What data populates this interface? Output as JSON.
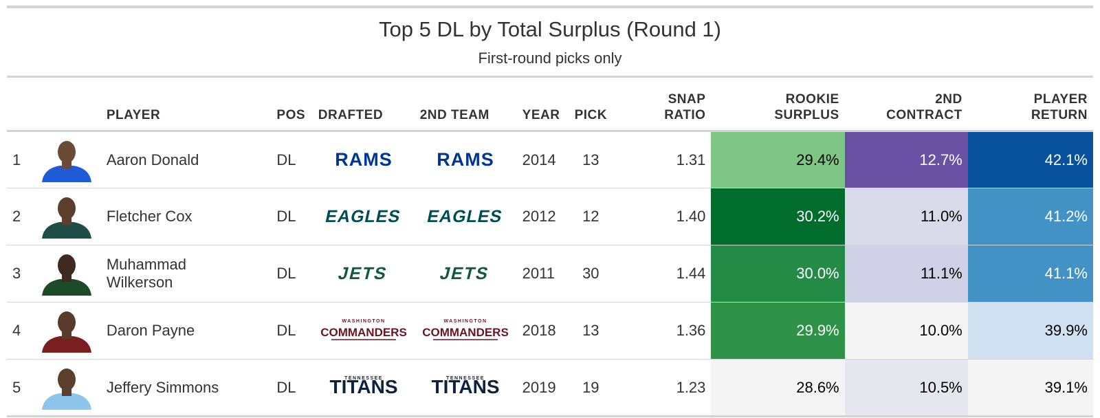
{
  "title": "Top 5 DL by Total Surplus (Round 1)",
  "subtitle": "First-round picks only",
  "columns": {
    "rank": "",
    "headshot": "",
    "player": "PLAYER",
    "pos": "POS",
    "drafted": "DRAFTED",
    "second_team": "2ND TEAM",
    "year": "YEAR",
    "pick": "PICK",
    "snap_ratio_1": "SNAP",
    "snap_ratio_2": "RATIO",
    "rookie_surplus_1": "ROOKIE",
    "rookie_surplus_2": "SURPLUS",
    "second_contract_1": "2ND",
    "second_contract_2": "CONTRACT",
    "player_return_1": "PLAYER",
    "player_return_2": "RETURN"
  },
  "rows": [
    {
      "rank": "1",
      "player_line1": "Aaron Donald",
      "player_line2": "",
      "pos": "DL",
      "drafted": "RAMS",
      "second_team": "RAMS",
      "team_style": "rams",
      "year": "2014",
      "pick": "13",
      "snap_ratio": "1.31",
      "rookie_surplus": "29.4%",
      "second_contract": "12.7%",
      "player_return": "42.1%",
      "rookie_color": "#7fc586",
      "rookie_dark": false,
      "contract_color": "#6a51a3",
      "contract_dark": true,
      "return_color": "#08519c",
      "return_dark": true,
      "jersey_color": "#1e5bd6",
      "skin_color": "#6b4a36"
    },
    {
      "rank": "2",
      "player_line1": "Fletcher Cox",
      "player_line2": "",
      "pos": "DL",
      "drafted": "EAGLES",
      "second_team": "EAGLES",
      "team_style": "eagles",
      "year": "2012",
      "pick": "12",
      "snap_ratio": "1.40",
      "rookie_surplus": "30.2%",
      "second_contract": "11.0%",
      "player_return": "41.2%",
      "rookie_color": "#006d2c",
      "rookie_dark": true,
      "contract_color": "#dadaeb",
      "contract_dark": false,
      "return_color": "#4292c6",
      "return_dark": true,
      "jersey_color": "#1f4e47",
      "skin_color": "#5c3e2d"
    },
    {
      "rank": "3",
      "player_line1": "Muhammad",
      "player_line2": "Wilkerson",
      "pos": "DL",
      "drafted": "JETS",
      "second_team": "JETS",
      "team_style": "jets",
      "year": "2011",
      "pick": "30",
      "snap_ratio": "1.44",
      "rookie_surplus": "30.0%",
      "second_contract": "11.1%",
      "player_return": "41.1%",
      "rookie_color": "#238b45",
      "rookie_dark": true,
      "contract_color": "#d0d0e6",
      "contract_dark": false,
      "return_color": "#4292c6",
      "return_dark": true,
      "jersey_color": "#1d4b2a",
      "skin_color": "#3f2a1f"
    },
    {
      "rank": "4",
      "player_line1": "Daron Payne",
      "player_line2": "",
      "pos": "DL",
      "drafted": "COMMANDERS",
      "second_team": "COMMANDERS",
      "team_style": "commanders",
      "year": "2018",
      "pick": "13",
      "snap_ratio": "1.36",
      "rookie_surplus": "29.9%",
      "second_contract": "10.0%",
      "player_return": "39.9%",
      "rookie_color": "#2e9249",
      "rookie_dark": true,
      "contract_color": "#f4f4f4",
      "contract_dark": false,
      "return_color": "#d0e1f2",
      "return_dark": false,
      "jersey_color": "#7a1f1f",
      "skin_color": "#5a3a2a"
    },
    {
      "rank": "5",
      "player_line1": "Jeffery Simmons",
      "player_line2": "",
      "pos": "DL",
      "drafted": "TITANS",
      "second_team": "TITANS",
      "team_style": "titans",
      "year": "2019",
      "pick": "19",
      "snap_ratio": "1.23",
      "rookie_surplus": "28.6%",
      "second_contract": "10.5%",
      "player_return": "39.1%",
      "rookie_color": "#f4f4f4",
      "rookie_dark": false,
      "contract_color": "#e6e6ef",
      "contract_dark": false,
      "return_color": "#f4f4f4",
      "return_dark": false,
      "jersey_color": "#8ec5ea",
      "skin_color": "#5c3e2d"
    }
  ],
  "logo_extras": {
    "commanders_top": "WASHINGTON",
    "titans_top": "TENNESSEE"
  }
}
